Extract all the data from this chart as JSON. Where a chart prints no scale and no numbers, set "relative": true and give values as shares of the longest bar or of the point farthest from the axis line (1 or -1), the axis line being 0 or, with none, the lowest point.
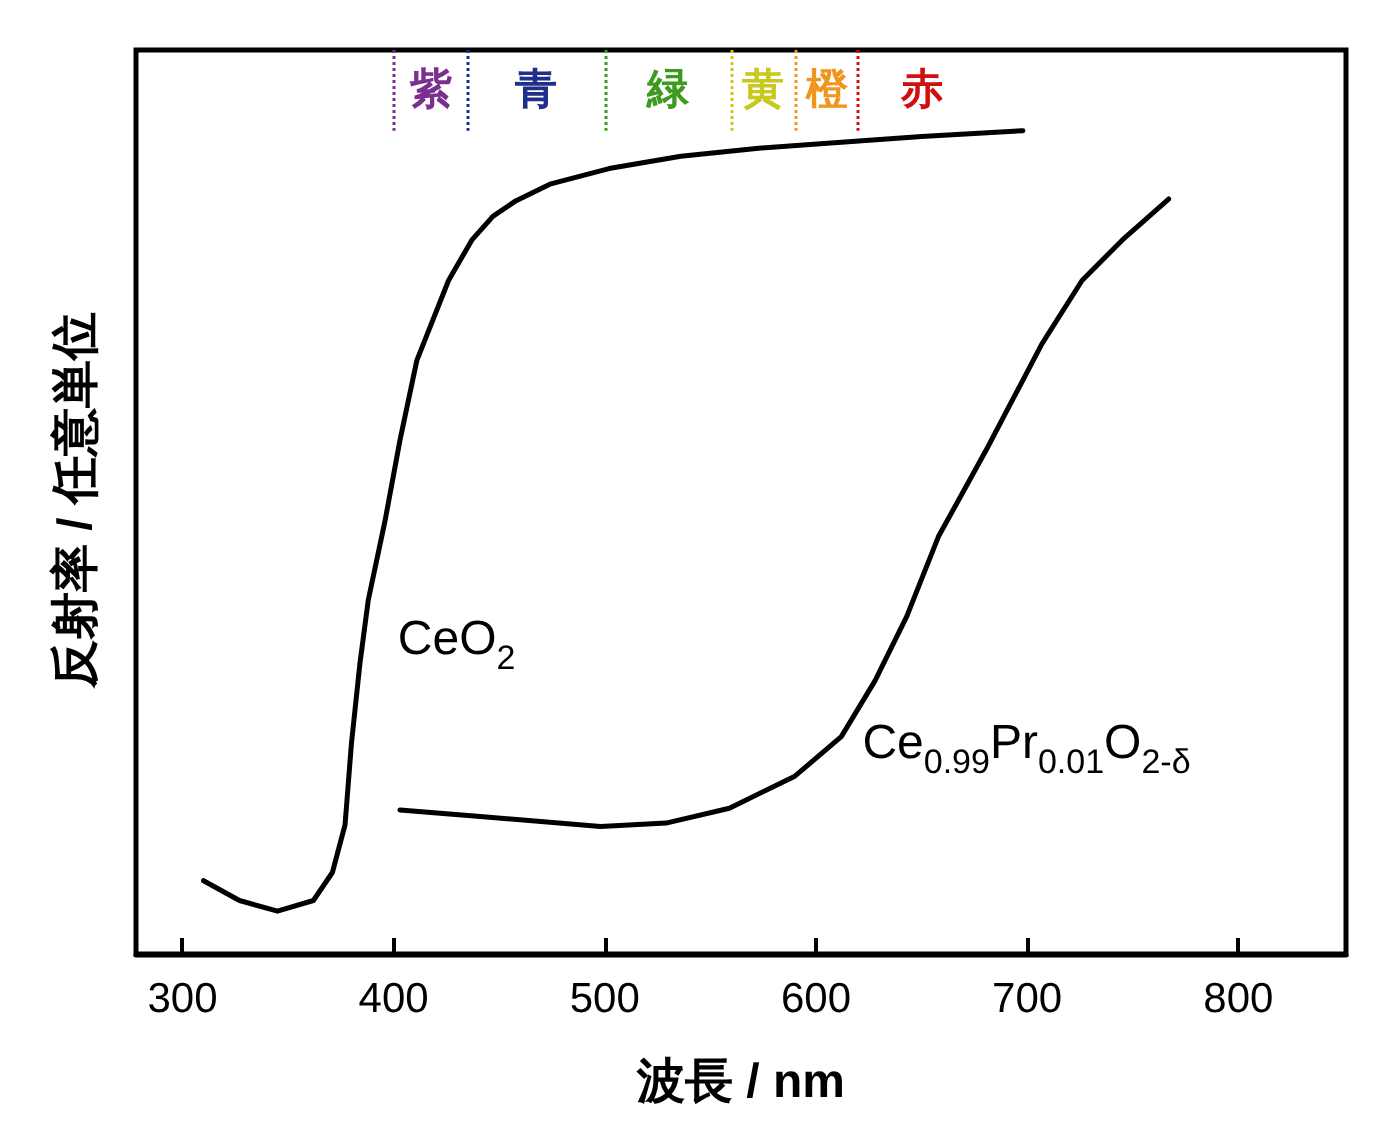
{
  "chart_data": {
    "type": "line",
    "relative": true,
    "xlabel": "波長 / nm",
    "ylabel": "反射率 / 任意単位",
    "xlim": [
      278,
      851
    ],
    "xticks": [
      300,
      400,
      500,
      600,
      700,
      800
    ],
    "legend": false,
    "grid": false,
    "marker": "none",
    "line_style": "solid",
    "series": [
      {
        "name": "CeO$_{2}$",
        "color": "#000000",
        "x": [
          310,
          327,
          345,
          362,
          371,
          377,
          380,
          384,
          388,
          396,
          403,
          411,
          426,
          437,
          447,
          458,
          474,
          502,
          536,
          574,
          612,
          650,
          698
        ],
        "values": [
          0.089,
          0.065,
          0.052,
          0.065,
          0.099,
          0.157,
          0.255,
          0.352,
          0.43,
          0.527,
          0.624,
          0.721,
          0.818,
          0.867,
          0.896,
          0.915,
          0.935,
          0.954,
          0.969,
          0.979,
          0.986,
          0.993,
          1
        ]
      },
      {
        "name": "Ce$_{0.99}$Pr$_{0.01}$O$_{2-δ}$",
        "color": "#000000",
        "x": [
          403,
          441,
          498,
          529,
          559,
          590,
          612,
          628,
          643,
          658,
          681,
          707,
          726,
          745,
          767
        ],
        "values": [
          0.175,
          0.167,
          0.155,
          0.159,
          0.177,
          0.216,
          0.264,
          0.332,
          0.41,
          0.507,
          0.614,
          0.741,
          0.818,
          0.867,
          0.917
        ]
      }
    ],
    "ref_lines": [
      {
        "axis": "x",
        "value": 400,
        "label": "紫",
        "color": "#7b2f8e",
        "line_style": "dotted"
      },
      {
        "axis": "x",
        "value": 435,
        "label": "青",
        "color": "#1f2f8a",
        "line_style": "dotted"
      },
      {
        "axis": "x",
        "value": 500,
        "label": "緑",
        "color": "#3b9a1f",
        "line_style": "dotted"
      },
      {
        "axis": "x",
        "value": 560,
        "label": "黄",
        "color": "#c8c81e",
        "line_style": "dotted"
      },
      {
        "axis": "x",
        "value": 590,
        "label": "橙",
        "color": "#f0961e",
        "line_style": "dotted"
      },
      {
        "axis": "x",
        "value": 620,
        "label": "赤",
        "color": "#d01010",
        "line_style": "dotted"
      }
    ]
  }
}
